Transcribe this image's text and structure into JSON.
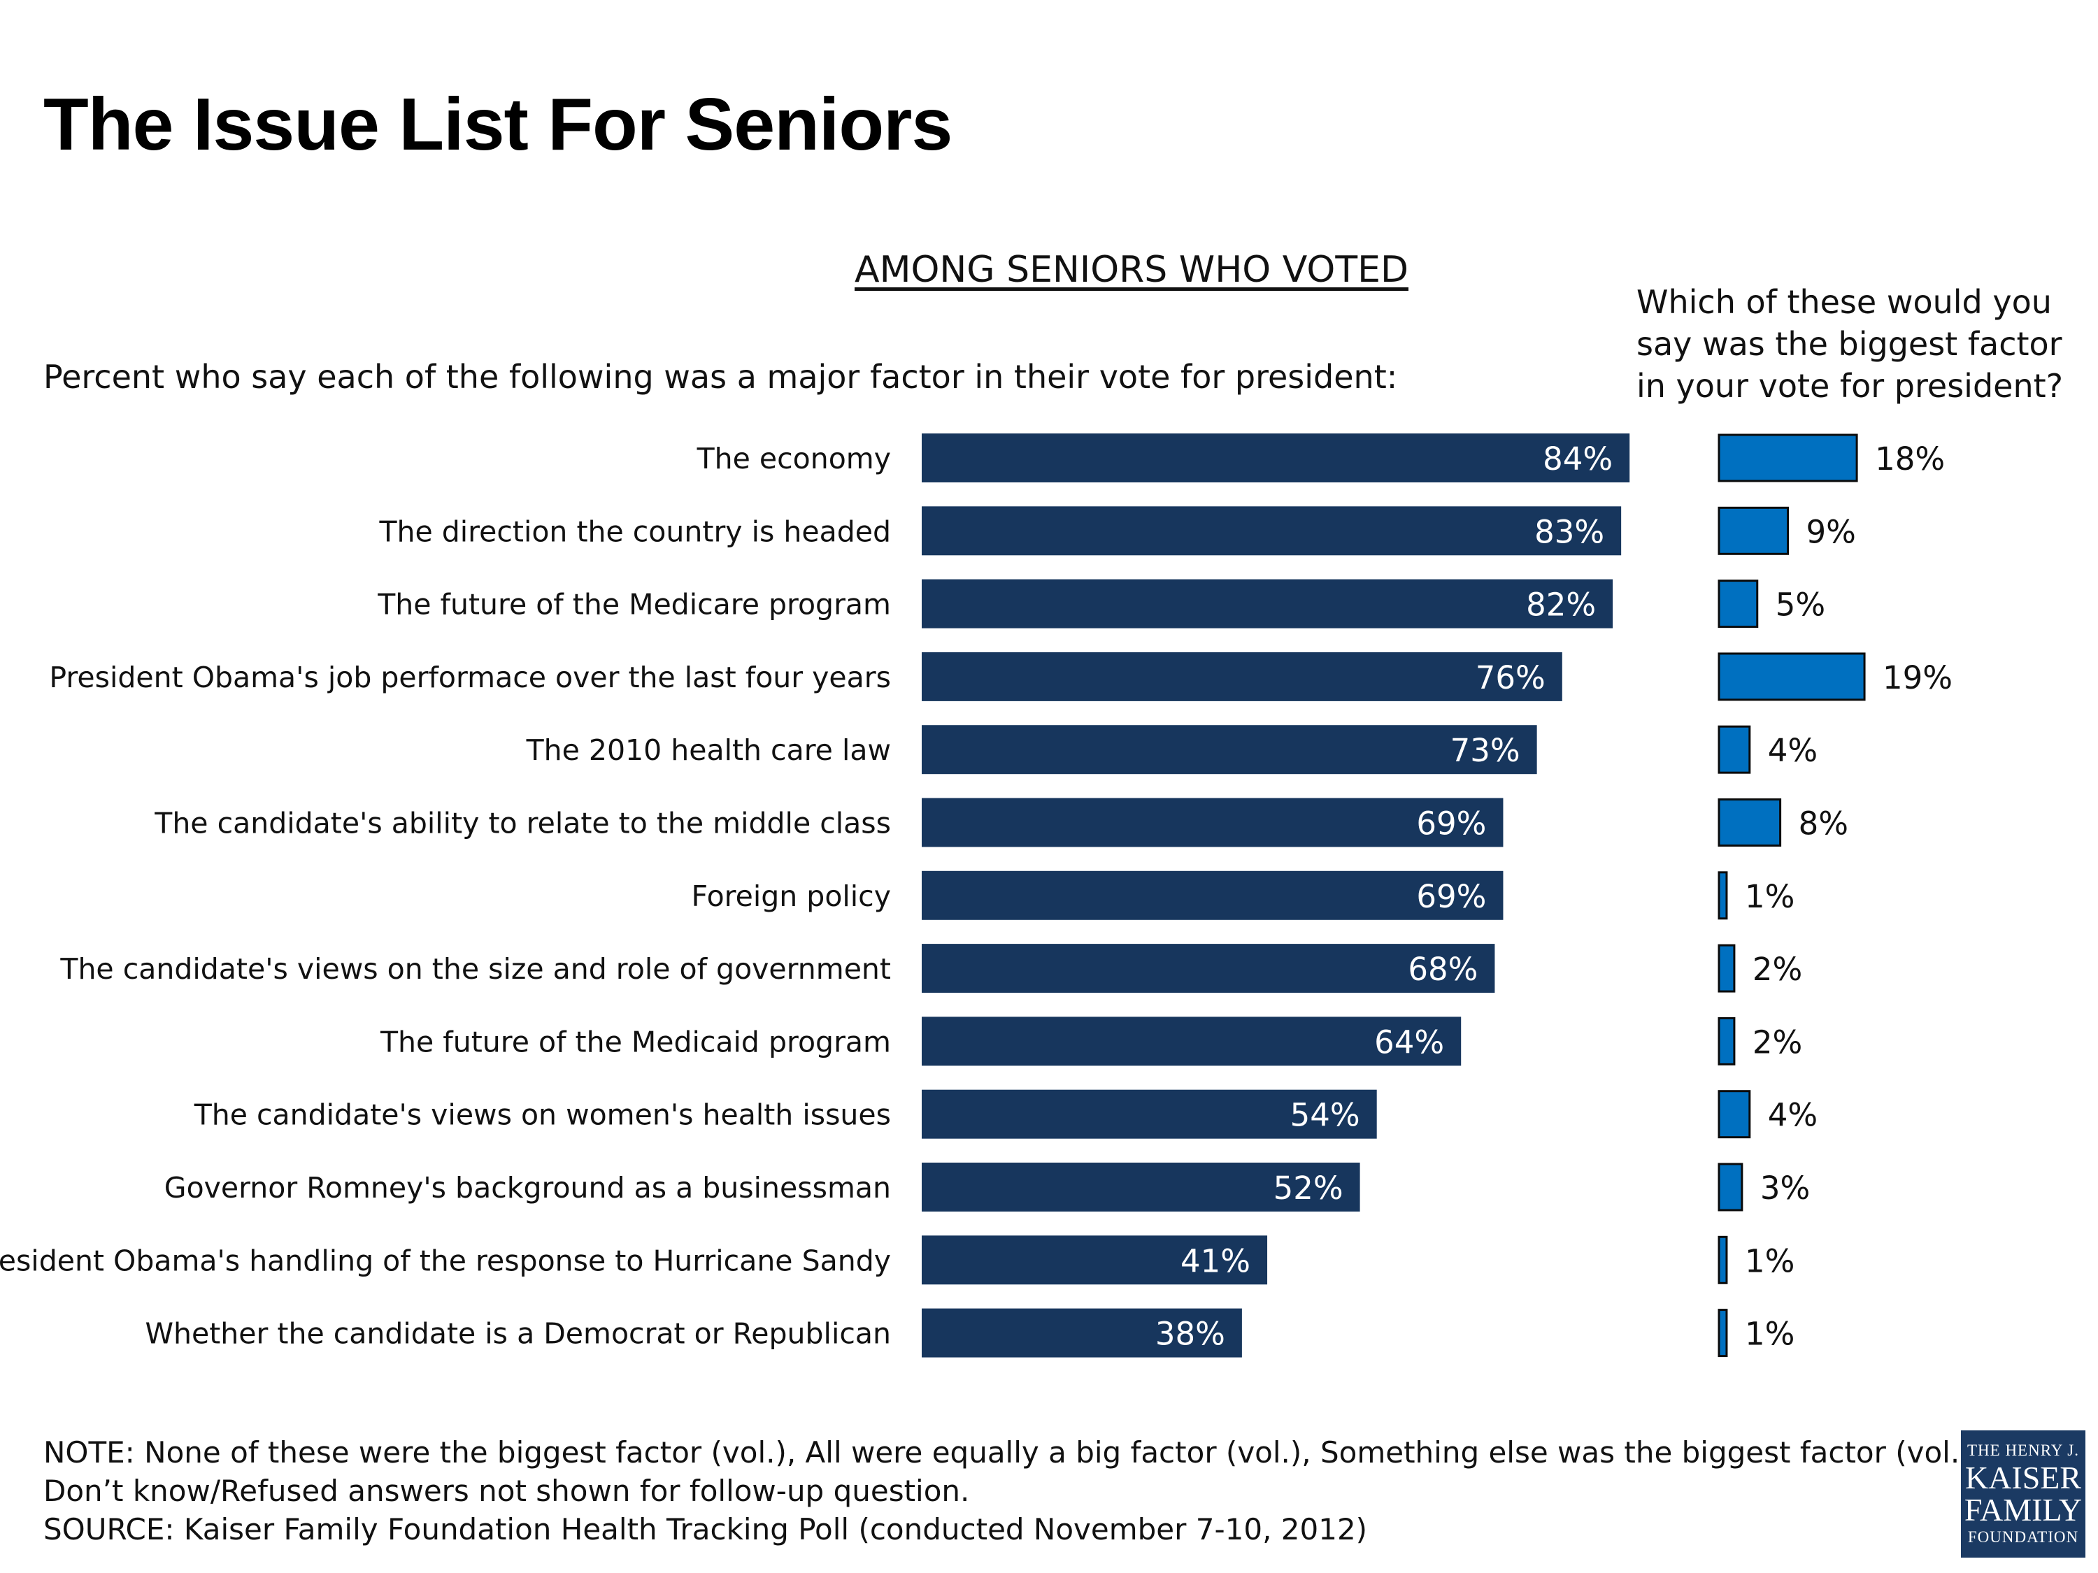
{
  "chart_data": {
    "type": "bar",
    "title": "The Issue List For Seniors",
    "subtitle": "AMONG SENIORS WHO VOTED",
    "categories": [
      "The economy",
      "The direction the country is headed",
      "The future of the Medicare program",
      "President Obama's job performace over the last four years",
      "The 2010 health care law",
      "The candidate's ability to relate to the middle class",
      "Foreign policy",
      "The candidate's views on the size and role of government",
      "The future of the Medicaid program",
      "The candidate's views on women's health issues",
      "Governor Romney's background as a businessman",
      "President Obama's handling of the response to Hurricane Sandy",
      "Whether the candidate is a Democrat or Republican"
    ],
    "series": [
      {
        "name": "Percent who say each of the following was a major factor in their vote for president:",
        "values": [
          84,
          83,
          82,
          76,
          73,
          69,
          69,
          68,
          64,
          54,
          52,
          41,
          38
        ],
        "labels": [
          "84%",
          "83%",
          "82%",
          "76%",
          "73%",
          "69%",
          "69%",
          "68%",
          "64%",
          "54%",
          "52%",
          "41%",
          "38%"
        ],
        "color": "#17365d"
      },
      {
        "name": "Which of these would you say was the biggest factor in your vote for president?",
        "values": [
          18,
          9,
          5,
          19,
          4,
          8,
          1,
          2,
          2,
          4,
          3,
          1,
          1
        ],
        "labels": [
          "18%",
          "9%",
          "5%",
          "19%",
          "4%",
          "8%",
          "1%",
          "2%",
          "2%",
          "4%",
          "3%",
          "1%",
          "1%"
        ],
        "color": "#0070c0"
      }
    ],
    "orientation": "horizontal",
    "grid": false,
    "legend": "none"
  },
  "note_lines": [
    "NOTE: None of these were the biggest factor (vol.), All were equally a big factor (vol.), Something else was the biggest factor (vol.), and",
    "Don’t know/Refused answers not shown for follow-up question.",
    "SOURCE: Kaiser Family Foundation Health Tracking Poll (conducted November 7-10, 2012)"
  ],
  "logo": {
    "line1": "THE HENRY J.",
    "line2": "KAISER",
    "line3": "FAMILY",
    "line4": "FOUNDATION"
  }
}
